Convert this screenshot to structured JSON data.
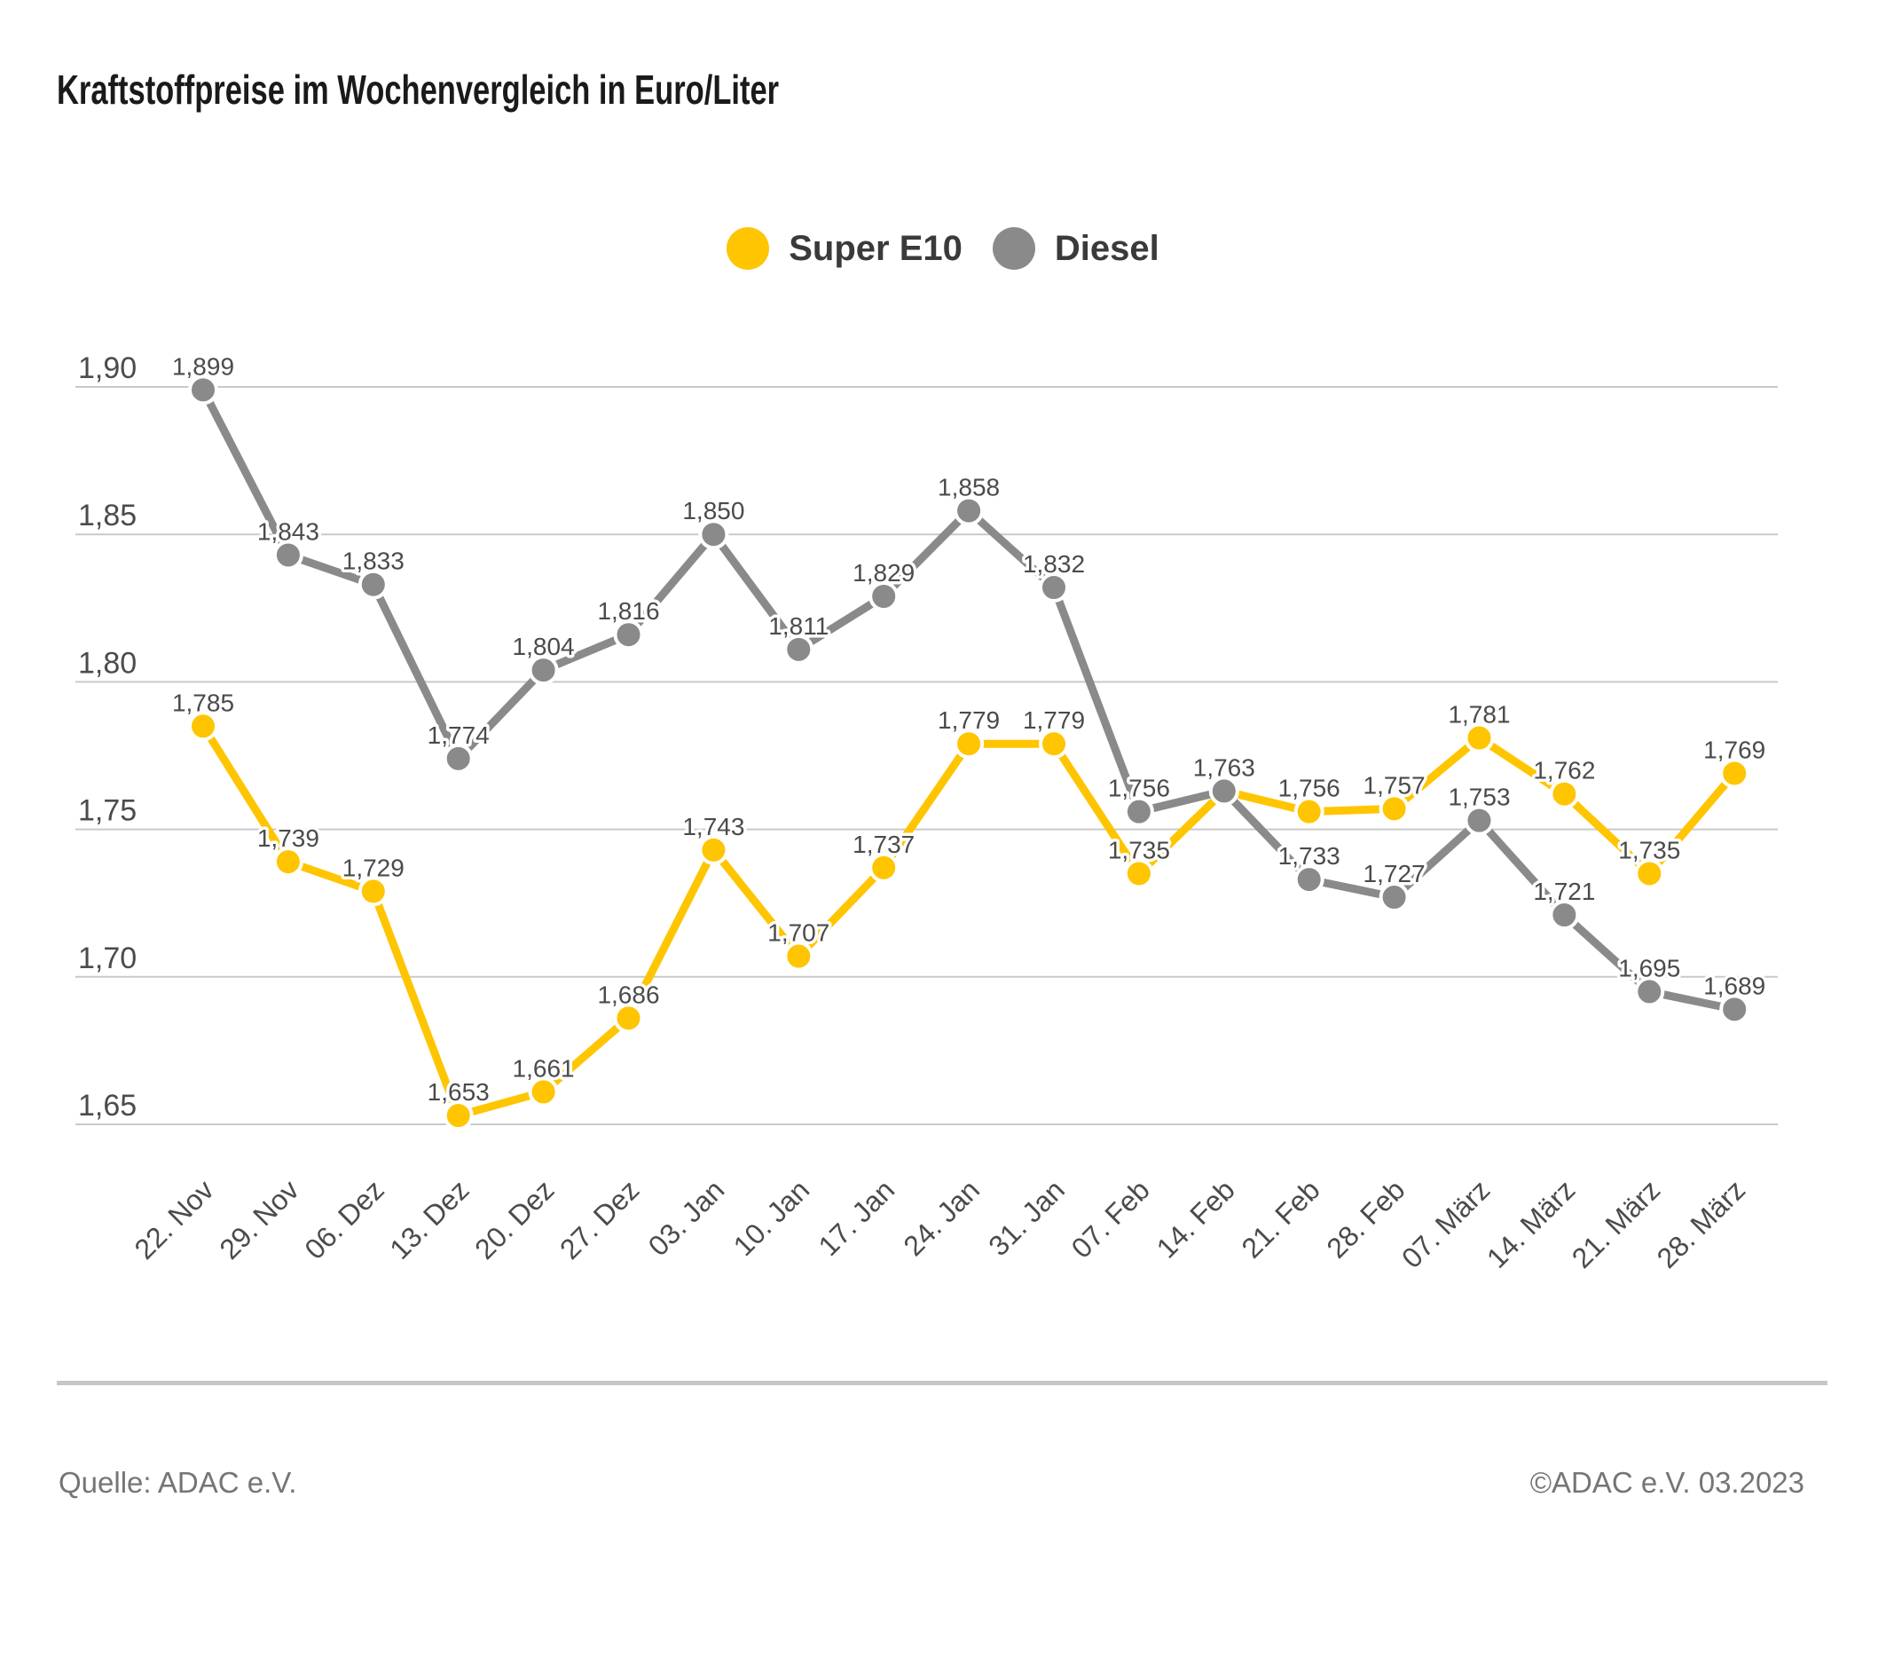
{
  "title": "Kraftstoffpreise im Wochenvergleich in Euro/Liter",
  "legend": [
    {
      "label": "Super E10",
      "color": "#FFC500"
    },
    {
      "label": "Diesel",
      "color": "#8A8A8A"
    }
  ],
  "chart_data": {
    "type": "line",
    "title": "Kraftstoffpreise im Wochenvergleich in Euro/Liter",
    "categories": [
      "22. Nov",
      "29. Nov",
      "06. Dez",
      "13. Dez",
      "20. Dez",
      "27. Dez",
      "03. Jan",
      "10. Jan",
      "17. Jan",
      "24. Jan",
      "31. Jan",
      "07. Feb",
      "14. Feb",
      "21. Feb",
      "28. Feb",
      "07. März",
      "14. März",
      "21. März",
      "28. März"
    ],
    "series": [
      {
        "name": "Super E10",
        "color": "#FFC500",
        "values": [
          1.785,
          1.739,
          1.729,
          1.653,
          1.661,
          1.686,
          1.743,
          1.707,
          1.737,
          1.779,
          1.779,
          1.735,
          1.763,
          1.756,
          1.757,
          1.781,
          1.762,
          1.735,
          1.769
        ]
      },
      {
        "name": "Diesel",
        "color": "#8A8A8A",
        "values": [
          1.899,
          1.843,
          1.833,
          1.774,
          1.804,
          1.816,
          1.85,
          1.811,
          1.829,
          1.858,
          1.832,
          1.756,
          1.763,
          1.733,
          1.727,
          1.753,
          1.721,
          1.695,
          1.689
        ]
      }
    ],
    "xlabel": "",
    "ylabel": "Euro/Liter",
    "y_ticks": [
      1.9,
      1.85,
      1.8,
      1.75,
      1.7,
      1.65
    ],
    "ylim": [
      1.63,
      1.92
    ],
    "grid": "horizontal",
    "decimal_format": "comma",
    "point_labels": true,
    "legend_position": "top-center",
    "notes": "Super E10 and Diesel share the identical value 1,763 on 14. Feb (single label shown)"
  },
  "footer": {
    "source": "Quelle: ADAC e.V.",
    "copyright": "©ADAC e.V. 03.2023"
  }
}
